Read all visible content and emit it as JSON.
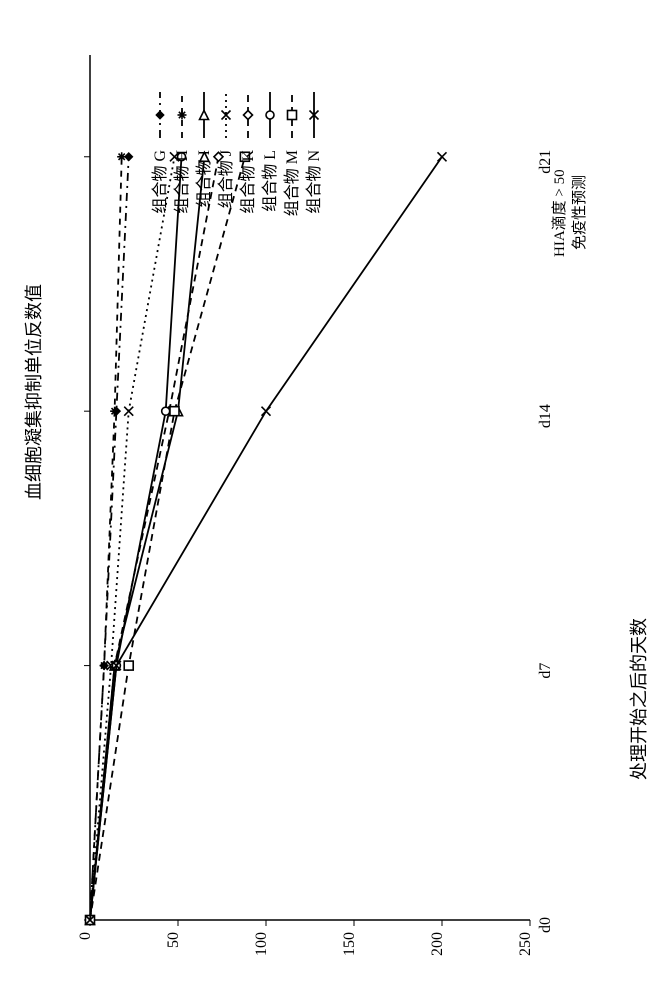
{
  "chart": {
    "type": "line",
    "orientation": "rotated-90ccw",
    "background_color": "#ffffff",
    "axis_color": "#000000",
    "axis_width": 1.5,
    "y_title": "血细胞凝集抑制单位反数值",
    "x_title": "处理开始之后的天数",
    "y_title_fontsize": 18,
    "x_title_fontsize": 18,
    "x_ticks": [
      "d0",
      "d7",
      "d14",
      "d21"
    ],
    "y_ticks": [
      0,
      50,
      100,
      150,
      200,
      250
    ],
    "tick_fontsize": 16,
    "x_positions": [
      0,
      1,
      2,
      3
    ],
    "xlim": [
      0,
      3.4
    ],
    "ylim": [
      0,
      250
    ],
    "tick_len": 6,
    "reference_label_1": "HIA滴度 > 50",
    "reference_label_2": "免疫性预测",
    "legend_title": null,
    "legend_fontsize": 16,
    "series": [
      {
        "label": "组合物 G",
        "color": "#000000",
        "line_width": 1.8,
        "dash": "8 5 2 5",
        "marker": "diamond-filled",
        "marker_size": 8,
        "values": [
          0,
          8,
          15,
          22
        ]
      },
      {
        "label": "组合物 H",
        "color": "#000000",
        "line_width": 1.8,
        "dash": "6 6",
        "marker": "asterisk",
        "marker_size": 9,
        "values": [
          0,
          8,
          14,
          18
        ]
      },
      {
        "label": "组合物 I",
        "color": "#000000",
        "line_width": 1.8,
        "dash": "none",
        "marker": "triangle-open",
        "marker_size": 9,
        "values": [
          0,
          14,
          50,
          65
        ]
      },
      {
        "label": "组合物 J",
        "color": "#000000",
        "line_width": 1.8,
        "dash": "2 4",
        "marker": "x",
        "marker_size": 9,
        "values": [
          0,
          12,
          22,
          48
        ]
      },
      {
        "label": "组合物 K",
        "color": "#000000",
        "line_width": 1.8,
        "dash": "7 5",
        "marker": "diamond-open",
        "marker_size": 9,
        "values": [
          0,
          14,
          45,
          73
        ]
      },
      {
        "label": "组合物 L",
        "color": "#000000",
        "line_width": 1.8,
        "dash": "none",
        "marker": "circle-open",
        "marker_size": 8,
        "values": [
          0,
          15,
          43,
          52
        ]
      },
      {
        "label": "组合物 M",
        "color": "#000000",
        "line_width": 1.8,
        "dash": "7 5",
        "marker": "square-open",
        "marker_size": 9,
        "values": [
          0,
          22,
          48,
          88
        ]
      },
      {
        "label": "组合物 N",
        "color": "#000000",
        "line_width": 1.8,
        "dash": "none",
        "marker": "x",
        "marker_size": 9,
        "values": [
          0,
          15,
          100,
          200
        ]
      }
    ]
  }
}
